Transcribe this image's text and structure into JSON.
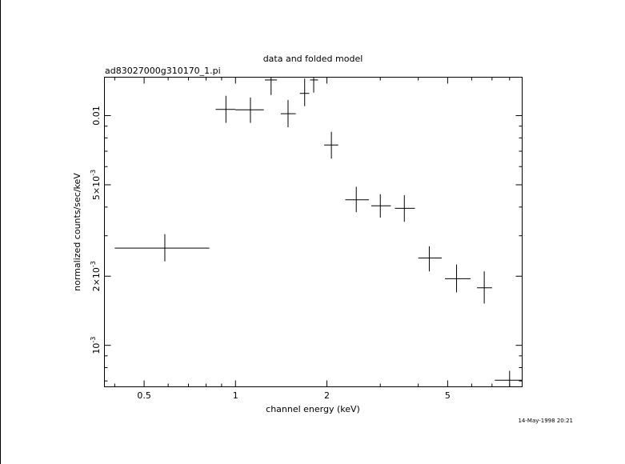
{
  "chart_data": {
    "type": "scatter",
    "title": "data and folded model",
    "subtitle": "ad83027000g310170_1.pi",
    "xlabel": "channel energy (keV)",
    "ylabel": "normalized counts/sec/keV",
    "footer": "14-May-1998 20:21",
    "x_scale": "log",
    "y_scale": "log",
    "xlim": [
      0.37,
      8.8
    ],
    "ylim": [
      0.00066,
      0.0147
    ],
    "grid": false,
    "x_ticks": [
      {
        "value": 0.5,
        "label": "0.5"
      },
      {
        "value": 1,
        "label": "1"
      },
      {
        "value": 2,
        "label": "2"
      },
      {
        "value": 5,
        "label": "5"
      }
    ],
    "y_ticks": [
      {
        "value": 0.001,
        "label": "10⁻³",
        "base": "10",
        "exp": "-3"
      },
      {
        "value": 0.002,
        "label": "2×10⁻³",
        "base": "2×10",
        "exp": "-3"
      },
      {
        "value": 0.005,
        "label": "5×10⁻³",
        "base": "5×10",
        "exp": "-3"
      },
      {
        "value": 0.01,
        "label": "0.01"
      }
    ],
    "series": [
      {
        "points": [
          {
            "x": 0.585,
            "xlo": 0.4,
            "xhi": 0.82,
            "y": 0.00265,
            "ylo": 0.00232,
            "yhi": 0.00305
          },
          {
            "x": 0.93,
            "xlo": 0.86,
            "xhi": 1.0,
            "y": 0.01065,
            "ylo": 0.0093,
            "yhi": 0.0122
          },
          {
            "x": 1.12,
            "xlo": 1.0,
            "xhi": 1.24,
            "y": 0.0106,
            "ylo": 0.0093,
            "yhi": 0.012
          },
          {
            "x": 1.31,
            "xlo": 1.25,
            "xhi": 1.37,
            "y": 0.0143,
            "ylo": 0.0123,
            "yhi": 0.0166
          },
          {
            "x": 1.49,
            "xlo": 1.41,
            "xhi": 1.58,
            "y": 0.0102,
            "ylo": 0.0089,
            "yhi": 0.0117
          },
          {
            "x": 1.69,
            "xlo": 1.63,
            "xhi": 1.75,
            "y": 0.0125,
            "ylo": 0.011,
            "yhi": 0.0145
          },
          {
            "x": 1.81,
            "xlo": 1.76,
            "xhi": 1.87,
            "y": 0.0143,
            "ylo": 0.0126,
            "yhi": 0.0162
          },
          {
            "x": 2.07,
            "xlo": 1.96,
            "xhi": 2.18,
            "y": 0.00745,
            "ylo": 0.0065,
            "yhi": 0.0085
          },
          {
            "x": 2.5,
            "xlo": 2.3,
            "xhi": 2.75,
            "y": 0.0043,
            "ylo": 0.0038,
            "yhi": 0.0049
          },
          {
            "x": 3.0,
            "xlo": 2.8,
            "xhi": 3.25,
            "y": 0.00405,
            "ylo": 0.0036,
            "yhi": 0.00455
          },
          {
            "x": 3.6,
            "xlo": 3.35,
            "xhi": 3.9,
            "y": 0.00395,
            "ylo": 0.00345,
            "yhi": 0.0045
          },
          {
            "x": 4.35,
            "xlo": 4.0,
            "xhi": 4.78,
            "y": 0.0024,
            "ylo": 0.0021,
            "yhi": 0.0027
          },
          {
            "x": 5.35,
            "xlo": 4.9,
            "xhi": 5.95,
            "y": 0.00195,
            "ylo": 0.0017,
            "yhi": 0.00225
          },
          {
            "x": 6.6,
            "xlo": 6.25,
            "xhi": 7.0,
            "y": 0.00178,
            "ylo": 0.00152,
            "yhi": 0.0021
          },
          {
            "x": 8.0,
            "xlo": 7.15,
            "xhi": 8.9,
            "y": 0.000705,
            "ylo": 0.00064,
            "yhi": 0.000775
          }
        ]
      }
    ]
  }
}
